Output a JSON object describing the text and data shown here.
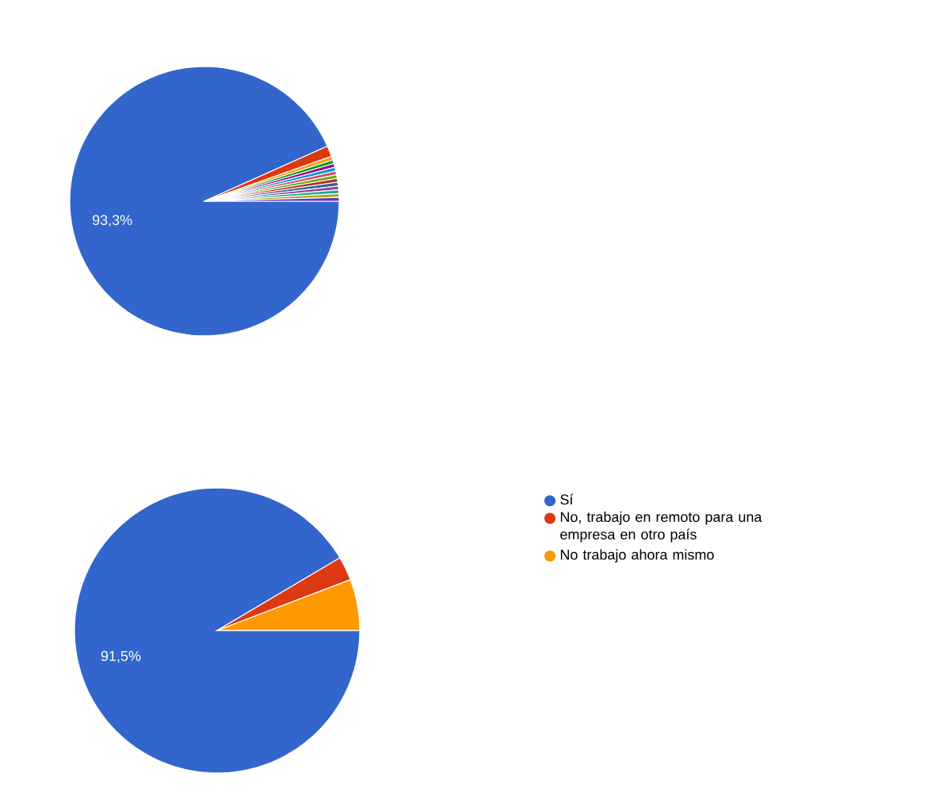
{
  "chart_data": [
    {
      "type": "pie",
      "categories": [
        null,
        null,
        null,
        null,
        null,
        null,
        null,
        null,
        null,
        null,
        null,
        null,
        null,
        null
      ],
      "values": [
        93.3,
        1.3,
        0.45,
        0.45,
        0.45,
        0.45,
        0.45,
        0.45,
        0.45,
        0.45,
        0.45,
        0.45,
        0.45,
        0.45
      ],
      "colors": [
        "#3366cc",
        "#dc3912",
        "#ff9900",
        "#109618",
        "#990099",
        "#0099c6",
        "#dd4477",
        "#66aa00",
        "#b82e2e",
        "#316395",
        "#994499",
        "#22aa99",
        "#aaaa11",
        "#6633cc"
      ],
      "value_labels": [
        "93,3%",
        null,
        null,
        null,
        null,
        null,
        null,
        null,
        null,
        null,
        null,
        null,
        null,
        null
      ],
      "legend": false
    },
    {
      "type": "pie",
      "categories": [
        "Sí",
        "No, trabajo en remoto para una empresa en otro país",
        "No trabajo ahora mismo"
      ],
      "values": [
        91.5,
        2.7,
        5.8
      ],
      "colors": [
        "#3366cc",
        "#dc3912",
        "#ff9900"
      ],
      "value_labels": [
        "91,5%",
        null,
        null
      ],
      "legend": "right"
    }
  ]
}
